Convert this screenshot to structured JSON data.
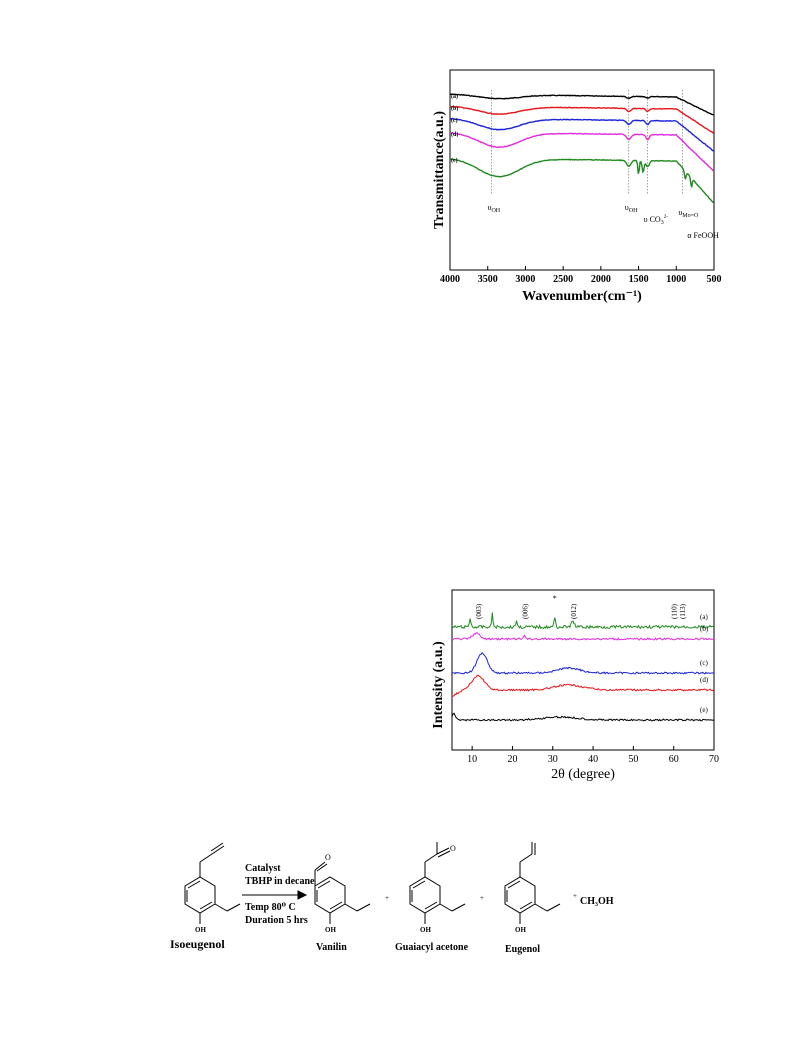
{
  "ftir": {
    "chart_data": {
      "type": "line",
      "xlabel": "Wavenumber(cm⁻¹)",
      "ylabel": "Transmittance(a.u.)",
      "xlim": [
        4000,
        500
      ],
      "x_ticks": [
        "4000",
        "3500",
        "3000",
        "2500",
        "2000",
        "1500",
        "1000",
        "500"
      ],
      "x_tick_values": [
        4000,
        3500,
        3000,
        2500,
        2000,
        1500,
        1000,
        500
      ],
      "series": [
        {
          "name": "(a)",
          "color": "#000000"
        },
        {
          "name": "(b)",
          "color": "#e8141b"
        },
        {
          "name": "(c)",
          "color": "#1a25d8"
        },
        {
          "name": "(d)",
          "color": "#e22ae0"
        },
        {
          "name": "(e)",
          "color": "#1f8a1f"
        }
      ],
      "annotations": [
        {
          "label": "υ",
          "sub": "OH",
          "x": 3450
        },
        {
          "label": "υ",
          "sub": "OH",
          "x": 1630
        },
        {
          "label": "υ CO",
          "sub": "3",
          "sup": "2-",
          "x": 1380
        },
        {
          "label": "υ",
          "sub": "Mo=O",
          "x": 920
        },
        {
          "label": "α FeOOH",
          "x": 800
        }
      ]
    }
  },
  "xrd": {
    "chart_data": {
      "type": "line",
      "xlabel": "2θ (degree)",
      "ylabel": "Intensity (a.u.)",
      "xlim": [
        5,
        70
      ],
      "x_ticks": [
        "10",
        "20",
        "30",
        "40",
        "50",
        "60",
        "70"
      ],
      "x_tick_values": [
        10,
        20,
        30,
        40,
        50,
        60,
        70
      ],
      "series": [
        {
          "name": "(a)",
          "color": "#1f8a1f"
        },
        {
          "name": "(b)",
          "color": "#e22ae0"
        },
        {
          "name": "(c)",
          "color": "#1a25d8"
        },
        {
          "name": "(d)",
          "color": "#e8141b"
        },
        {
          "name": "(e)",
          "color": "#000000"
        }
      ],
      "peak_labels": [
        {
          "label": "(003)",
          "x": 11.5
        },
        {
          "label": "(006)",
          "x": 23
        },
        {
          "label": "*",
          "x": 30.5
        },
        {
          "label": "(012)",
          "x": 35
        },
        {
          "label": "(110)",
          "x": 60
        },
        {
          "label": "(113)",
          "x": 62
        }
      ]
    }
  },
  "scheme": {
    "reactant": "Isoeugenol",
    "conditions": [
      "Catalyst",
      "TBHP in decane",
      "Temp 80⁰ C",
      "Duration 5 hrs"
    ],
    "products": [
      "Vanilin",
      "Guaiacyl acetone",
      "Eugenol"
    ],
    "byproduct": "CH₃OH",
    "plus": "+",
    "oh": "OH"
  }
}
